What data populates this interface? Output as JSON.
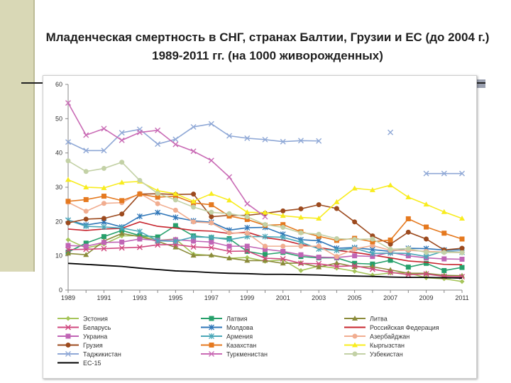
{
  "title": "Младенческая смертность в СНГ, странах Балтии, Грузии и ЕС (до 2004 г.) 1989-2011 гг. (на 1000 живорожденных)",
  "chart_data": {
    "type": "line",
    "title": "",
    "xlabel": "",
    "ylabel": "",
    "x": [
      1989,
      1990,
      1991,
      1992,
      1993,
      1994,
      1995,
      1996,
      1997,
      1998,
      1999,
      2000,
      2001,
      2002,
      2003,
      2004,
      2005,
      2006,
      2007,
      2008,
      2009,
      2010,
      2011
    ],
    "x_ticks": [
      "1989",
      "1991",
      "1993",
      "1995",
      "1997",
      "1999",
      "2001",
      "2003",
      "2005",
      "2007",
      "2009",
      "2011"
    ],
    "ylim": [
      0,
      60
    ],
    "y_ticks": [
      "0",
      "10",
      "20",
      "30",
      "40",
      "50",
      "60"
    ],
    "grid": false,
    "legend_position": "bottom",
    "series": [
      {
        "name": "Эстония",
        "color": "#a6c55a",
        "marker": "diamond",
        "values": [
          14.7,
          12.3,
          13.4,
          15.8,
          15.9,
          14.5,
          14.9,
          10.5,
          10.1,
          9.3,
          9.5,
          8.4,
          8.8,
          5.7,
          7.0,
          6.4,
          5.5,
          4.4,
          5.0,
          5.0,
          3.6,
          3.3,
          2.5
        ]
      },
      {
        "name": "Латвия",
        "color": "#26a06b",
        "marker": "square",
        "values": [
          11.1,
          13.7,
          15.6,
          17.4,
          15.9,
          15.5,
          18.8,
          15.8,
          15.3,
          15.0,
          11.3,
          10.4,
          11.0,
          9.8,
          9.4,
          9.4,
          7.8,
          7.6,
          8.7,
          6.7,
          7.8,
          5.7,
          6.6
        ]
      },
      {
        "name": "Литва",
        "color": "#8b8b3a",
        "marker": "triangle",
        "values": [
          10.7,
          10.3,
          14.3,
          16.5,
          15.6,
          14.2,
          12.5,
          10.1,
          10.2,
          9.3,
          8.6,
          8.6,
          7.8,
          7.9,
          6.7,
          7.9,
          6.8,
          6.8,
          5.9,
          4.9,
          4.9,
          4.3,
          4.2
        ]
      },
      {
        "name": "Беларусь",
        "color": "#d0487f",
        "marker": "x",
        "values": [
          11.8,
          11.9,
          12.1,
          12.3,
          12.5,
          13.2,
          13.3,
          12.6,
          12.4,
          11.3,
          11.4,
          9.3,
          9.1,
          7.8,
          7.7,
          6.9,
          7.1,
          6.1,
          5.2,
          4.5,
          4.7,
          4.0,
          3.9
        ]
      },
      {
        "name": "Молдова",
        "color": "#2f76b8",
        "marker": "star",
        "values": [
          20.4,
          19.0,
          19.8,
          18.4,
          21.5,
          22.6,
          21.2,
          20.2,
          19.8,
          17.5,
          18.2,
          18.3,
          16.3,
          14.7,
          14.4,
          12.2,
          12.4,
          11.8,
          11.3,
          12.2,
          12.1,
          11.7,
          11.7
        ]
      },
      {
        "name": "Российская Федерация",
        "color": "#c7242d",
        "marker": "none",
        "values": [
          17.8,
          17.4,
          17.8,
          18.0,
          19.9,
          18.6,
          18.1,
          17.4,
          17.2,
          16.5,
          16.9,
          15.3,
          14.6,
          13.3,
          12.4,
          11.6,
          11.0,
          10.2,
          9.4,
          8.5,
          8.1,
          7.5,
          7.4
        ]
      },
      {
        "name": "Украина",
        "color": "#c064b5",
        "marker": "square",
        "values": [
          13.0,
          12.8,
          13.9,
          14.0,
          14.9,
          14.5,
          14.7,
          14.3,
          14.0,
          12.8,
          12.8,
          11.9,
          11.3,
          10.3,
          9.6,
          9.5,
          10.0,
          9.8,
          11.0,
          10.0,
          9.4,
          9.1,
          9.0
        ]
      },
      {
        "name": "Армения",
        "color": "#4aa7b8",
        "marker": "star",
        "values": [
          20.4,
          18.6,
          18.4,
          18.1,
          17.1,
          14.4,
          14.2,
          15.5,
          15.4,
          14.7,
          15.6,
          15.6,
          15.4,
          14.0,
          12.0,
          11.6,
          12.2,
          10.7,
          10.8,
          10.7,
          9.8,
          11.4,
          11.0
        ]
      },
      {
        "name": "Азербайджан",
        "color": "#f1ad90",
        "marker": "circle",
        "values": [
          25.6,
          23.0,
          25.3,
          25.5,
          28.2,
          25.2,
          23.3,
          19.9,
          19.6,
          16.7,
          16.6,
          12.8,
          12.8,
          12.8,
          12.8,
          9.8,
          12.0,
          13.0,
          11.6,
          11.6,
          11.3,
          11.1,
          11.0
        ]
      },
      {
        "name": "Грузия",
        "color": "#9c4a1e",
        "marker": "circle",
        "values": [
          19.6,
          20.7,
          20.9,
          22.2,
          28.0,
          28.1,
          27.9,
          28.0,
          21.4,
          21.8,
          21.8,
          22.4,
          23.1,
          23.7,
          24.9,
          23.8,
          19.9,
          15.8,
          13.4,
          16.9,
          14.9,
          11.7,
          12.2
        ]
      },
      {
        "name": "Казахстан",
        "color": "#e5791f",
        "marker": "square",
        "values": [
          25.9,
          26.4,
          27.4,
          26.1,
          28.0,
          27.1,
          27.4,
          25.4,
          24.9,
          21.6,
          20.6,
          18.9,
          19.1,
          17.0,
          15.7,
          14.5,
          15.1,
          14.1,
          14.6,
          20.8,
          18.4,
          16.6,
          14.9
        ]
      },
      {
        "name": "Кыргызстан",
        "color": "#f8ec1e",
        "marker": "triangle",
        "values": [
          32.2,
          30.0,
          29.8,
          31.4,
          31.7,
          29.0,
          28.1,
          25.9,
          28.1,
          26.2,
          22.7,
          22.6,
          21.7,
          21.2,
          20.9,
          25.7,
          29.7,
          29.2,
          30.6,
          27.1,
          25.0,
          22.8,
          20.9
        ]
      },
      {
        "name": "Таджикистан",
        "color": "#8fa8d6",
        "marker": "x",
        "values": [
          43.2,
          40.7,
          40.7,
          45.9,
          46.9,
          42.6,
          44.0,
          47.6,
          48.5,
          45.0,
          44.3,
          43.9,
          43.3,
          43.6,
          43.5,
          null,
          null,
          null,
          46.0,
          null,
          34.0,
          34.0,
          34.0
        ]
      },
      {
        "name": "Туркменистан",
        "color": "#c96bb5",
        "marker": "x",
        "values": [
          54.6,
          45.2,
          47.1,
          43.7,
          46.0,
          46.6,
          42.5,
          40.5,
          37.8,
          33.0,
          25.2,
          21.4,
          null,
          null,
          null,
          null,
          null,
          null,
          null,
          null,
          null,
          null,
          null
        ]
      },
      {
        "name": "Узбекистан",
        "color": "#c3d1a6",
        "marker": "circle",
        "values": [
          37.7,
          34.6,
          35.5,
          37.3,
          32.0,
          28.2,
          26.3,
          24.2,
          22.7,
          22.3,
          21.4,
          19.1,
          18.3,
          16.7,
          16.3,
          15.0,
          14.8,
          14.9,
          11.9,
          12.1,
          11.0,
          11.0,
          10.9
        ]
      },
      {
        "name": "ЕС-15",
        "color": "#000000",
        "marker": "none",
        "values": [
          7.8,
          7.5,
          7.2,
          6.9,
          6.4,
          6.0,
          5.6,
          5.4,
          5.1,
          4.9,
          4.8,
          4.6,
          4.6,
          4.5,
          4.4,
          4.2,
          4.1,
          4.0,
          3.8,
          3.7,
          3.7,
          3.6,
          3.5
        ]
      }
    ]
  }
}
